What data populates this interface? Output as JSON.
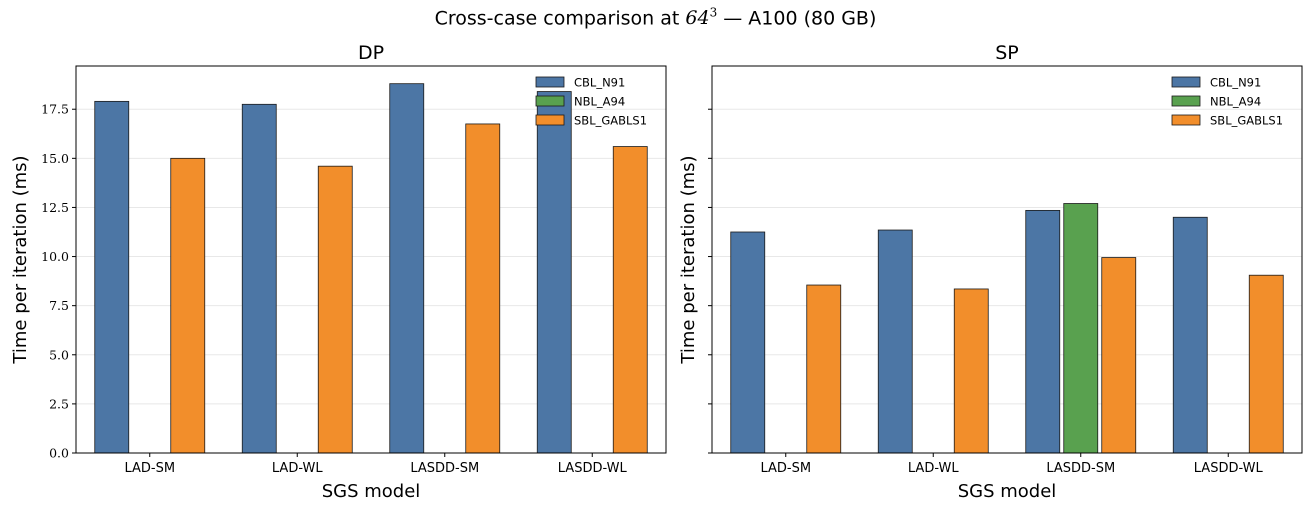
{
  "figure_title": {
    "prefix": "Cross-case comparison at ",
    "math_base": "64",
    "math_exp": "3",
    "suffix": " — A100 (80 GB)"
  },
  "colors": {
    "CBL_N91": "#4c76a5",
    "NBL_A94": "#59a14f",
    "SBL_GABLS1": "#f28e2b",
    "edge": "#1a1a1a",
    "grid": "#e8e8e8"
  },
  "chart_data": [
    {
      "type": "bar",
      "title": "DP",
      "xlabel": "SGS model",
      "ylabel": "Time per iteration (ms)",
      "categories": [
        "LAD-SM",
        "LAD-WL",
        "LASDD-SM",
        "LASDD-WL"
      ],
      "series": [
        {
          "name": "CBL_N91",
          "values": [
            17.9,
            17.75,
            18.8,
            18.4
          ]
        },
        {
          "name": "NBL_A94",
          "values": [
            null,
            null,
            null,
            null
          ]
        },
        {
          "name": "SBL_GABLS1",
          "values": [
            15.0,
            14.6,
            16.75,
            15.6
          ]
        }
      ],
      "ylim": [
        0,
        19.7
      ],
      "yticks": [
        "0.0",
        "2.5",
        "5.0",
        "7.5",
        "10.0",
        "12.5",
        "15.0",
        "17.5"
      ],
      "ytick_values": [
        0,
        2.5,
        5,
        7.5,
        10,
        12.5,
        15,
        17.5
      ],
      "grid": "y",
      "legend": "top-right"
    },
    {
      "type": "bar",
      "title": "SP",
      "xlabel": "SGS model",
      "ylabel": "Time per iteration (ms)",
      "categories": [
        "LAD-SM",
        "LAD-WL",
        "LASDD-SM",
        "LASDD-WL"
      ],
      "series": [
        {
          "name": "CBL_N91",
          "values": [
            11.25,
            11.35,
            12.35,
            12.0
          ]
        },
        {
          "name": "NBL_A94",
          "values": [
            null,
            null,
            12.7,
            null
          ]
        },
        {
          "name": "SBL_GABLS1",
          "values": [
            8.55,
            8.35,
            9.95,
            9.05
          ]
        }
      ],
      "ylim": [
        0,
        19.7
      ],
      "yticks": [
        "",
        "",
        "",
        "",
        "",
        "",
        "",
        ""
      ],
      "ytick_values": [
        0,
        2.5,
        5,
        7.5,
        10,
        12.5,
        15,
        17.5
      ],
      "grid": "y",
      "legend": "top-right"
    }
  ]
}
